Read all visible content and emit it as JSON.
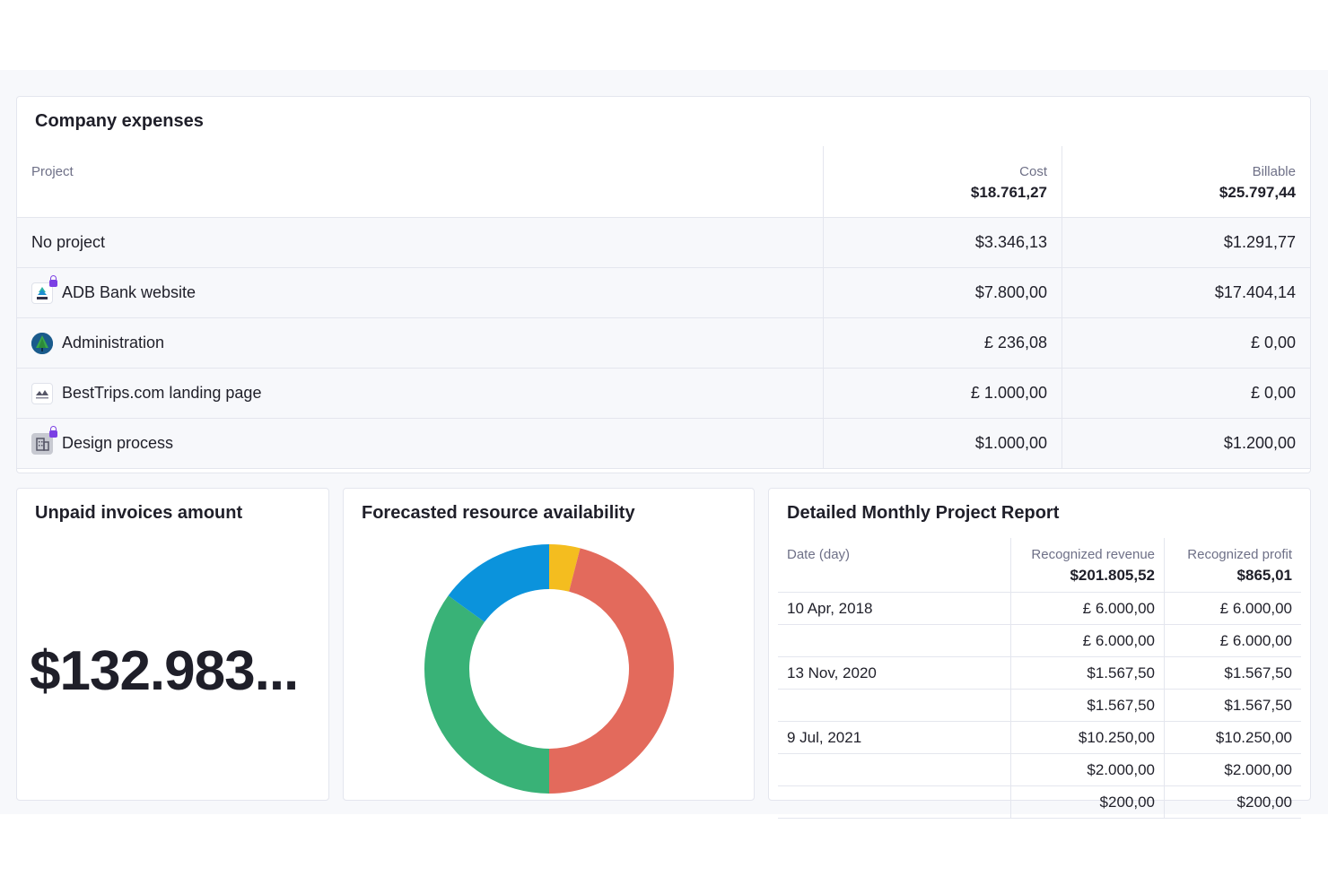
{
  "expenses": {
    "title": "Company expenses",
    "columns": {
      "project": "Project",
      "cost": "Cost",
      "billable": "Billable"
    },
    "totals": {
      "cost": "$18.761,27",
      "billable": "$25.797,44"
    },
    "rows": [
      {
        "project": "No project",
        "cost": "$3.346,13",
        "billable": "$1.291,77",
        "icon": "none",
        "locked": false
      },
      {
        "project": "ADB Bank website",
        "cost": "$7.800,00",
        "billable": "$17.404,14",
        "icon": "adb-logo-icon",
        "locked": true
      },
      {
        "project": "Administration",
        "cost": "£ 236,08",
        "billable": "£ 0,00",
        "icon": "tree-logo-icon",
        "locked": false
      },
      {
        "project": "BestTrips.com landing page",
        "cost": "£ 1.000,00",
        "billable": "£ 0,00",
        "icon": "besttrips-logo-icon",
        "locked": false
      },
      {
        "project": "Design process",
        "cost": "$1.000,00",
        "billable": "$1.200,00",
        "icon": "building-icon",
        "locked": true
      }
    ]
  },
  "unpaid": {
    "title": "Unpaid invoices amount",
    "amount": "$132.983..."
  },
  "forecast": {
    "title": "Forecasted resource availability"
  },
  "chart_data": {
    "type": "pie",
    "values": [
      4,
      46,
      35,
      15
    ],
    "colors": [
      "#f4bd1f",
      "#e36a5c",
      "#39b277",
      "#0b93dc"
    ],
    "donut": true
  },
  "report": {
    "title": "Detailed Monthly Project Report",
    "columns": {
      "date": "Date (day)",
      "revenue": "Recognized revenue",
      "profit": "Recognized profit"
    },
    "totals": {
      "revenue": "$201.805,52",
      "profit": "$865,01"
    },
    "rows": [
      {
        "date": "10 Apr, 2018",
        "revenue": "£ 6.000,00",
        "profit": "£ 6.000,00"
      },
      {
        "date": "",
        "revenue": "£ 6.000,00",
        "profit": "£ 6.000,00"
      },
      {
        "date": "13 Nov, 2020",
        "revenue": "$1.567,50",
        "profit": "$1.567,50"
      },
      {
        "date": "",
        "revenue": "$1.567,50",
        "profit": "$1.567,50"
      },
      {
        "date": "9 Jul, 2021",
        "revenue": "$10.250,00",
        "profit": "$10.250,00"
      },
      {
        "date": "",
        "revenue": "$2.000,00",
        "profit": "$2.000,00"
      },
      {
        "date": "",
        "revenue": "$200,00",
        "profit": "$200,00"
      }
    ]
  }
}
